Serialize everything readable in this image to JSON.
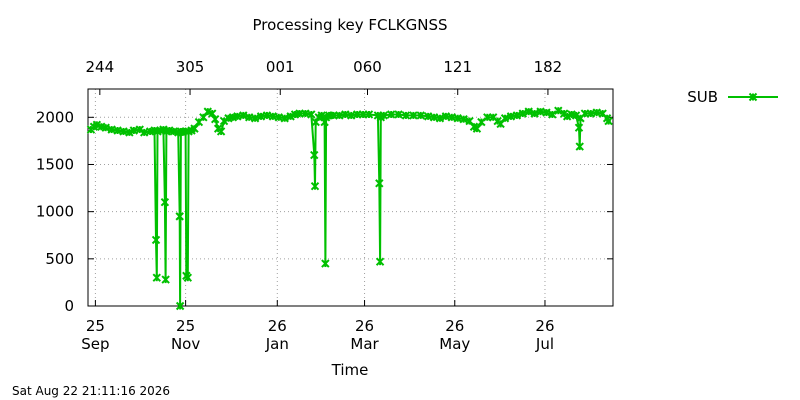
{
  "chart_data": {
    "type": "line",
    "title": "Processing key FCLKGNSS",
    "xlabel": "Time",
    "ylabel": "",
    "footer_timestamp": "Sat Aug 22 21:11:16 2026",
    "ylim": [
      0,
      2300
    ],
    "yticks": [
      "0",
      "500",
      "1000",
      "1500",
      "2000"
    ],
    "x_unit": "day of year (Sep 20 = day 0)",
    "xlim": [
      0,
      355
    ],
    "bottom_ticks": [
      {
        "x": 5,
        "line1": "25",
        "line2": "Sep"
      },
      {
        "x": 66,
        "line1": "25",
        "line2": "Nov"
      },
      {
        "x": 128,
        "line1": "26",
        "line2": "Jan"
      },
      {
        "x": 187,
        "line1": "26",
        "line2": "Mar"
      },
      {
        "x": 248,
        "line1": "26",
        "line2": "May"
      },
      {
        "x": 309,
        "line1": "26",
        "line2": "Jul"
      }
    ],
    "top_ticks": [
      {
        "x": 8,
        "label": "244"
      },
      {
        "x": 69,
        "label": "305"
      },
      {
        "x": 130,
        "label": "001"
      },
      {
        "x": 189,
        "label": "060"
      },
      {
        "x": 250,
        "label": "121"
      },
      {
        "x": 311,
        "label": "182"
      }
    ],
    "grid": true,
    "legend_position": "top-right, outside plot",
    "series": [
      {
        "name": "SUB",
        "color": "#00c000",
        "marker": "x",
        "points": [
          [
            2,
            1870
          ],
          [
            4,
            1900
          ],
          [
            6,
            1920
          ],
          [
            9,
            1900
          ],
          [
            12,
            1890
          ],
          [
            16,
            1870
          ],
          [
            20,
            1860
          ],
          [
            24,
            1850
          ],
          [
            28,
            1840
          ],
          [
            31,
            1860
          ],
          [
            35,
            1870
          ],
          [
            38,
            1840
          ],
          [
            42,
            1850
          ],
          [
            45,
            1860
          ],
          [
            46,
            700
          ],
          [
            46.5,
            300
          ],
          [
            47,
            1850
          ],
          [
            49,
            1860
          ],
          [
            51,
            1870
          ],
          [
            52,
            1100
          ],
          [
            52.5,
            280
          ],
          [
            53,
            1850
          ],
          [
            55,
            1860
          ],
          [
            58,
            1850
          ],
          [
            61,
            1840
          ],
          [
            62,
            950
          ],
          [
            62.3,
            0
          ],
          [
            62.8,
            1850
          ],
          [
            64,
            1840
          ],
          [
            66,
            1850
          ],
          [
            66.5,
            320
          ],
          [
            67.5,
            300
          ],
          [
            68,
            1850
          ],
          [
            70,
            1860
          ],
          [
            72,
            1880
          ],
          [
            75,
            1950
          ],
          [
            78,
            2000
          ],
          [
            81,
            2060
          ],
          [
            84,
            2040
          ],
          [
            86,
            1980
          ],
          [
            88,
            1880
          ],
          [
            90,
            1850
          ],
          [
            92,
            1960
          ],
          [
            95,
            1990
          ],
          [
            98,
            2000
          ],
          [
            101,
            2010
          ],
          [
            105,
            2020
          ],
          [
            109,
            2000
          ],
          [
            113,
            1990
          ],
          [
            117,
            2010
          ],
          [
            121,
            2020
          ],
          [
            125,
            2010
          ],
          [
            129,
            2000
          ],
          [
            133,
            1990
          ],
          [
            137,
            2010
          ],
          [
            140,
            2030
          ],
          [
            143,
            2040
          ],
          [
            147,
            2040
          ],
          [
            151,
            2030
          ],
          [
            153,
            1600
          ],
          [
            153.5,
            1270
          ],
          [
            154,
            1950
          ],
          [
            156,
            2000
          ],
          [
            158,
            2020
          ],
          [
            160,
            1950
          ],
          [
            160.5,
            450
          ],
          [
            161,
            2000
          ],
          [
            163,
            2020
          ],
          [
            166,
            2020
          ],
          [
            170,
            2020
          ],
          [
            174,
            2030
          ],
          [
            178,
            2020
          ],
          [
            182,
            2030
          ],
          [
            186,
            2030
          ],
          [
            190,
            2030
          ],
          [
            196,
            2020
          ],
          [
            197,
            1300
          ],
          [
            197.5,
            470
          ],
          [
            198,
            2000
          ],
          [
            200,
            2020
          ],
          [
            205,
            2030
          ],
          [
            210,
            2030
          ],
          [
            215,
            2020
          ],
          [
            220,
            2020
          ],
          [
            225,
            2020
          ],
          [
            230,
            2010
          ],
          [
            234,
            2000
          ],
          [
            238,
            1990
          ],
          [
            242,
            2010
          ],
          [
            246,
            2000
          ],
          [
            250,
            1990
          ],
          [
            254,
            1980
          ],
          [
            258,
            1960
          ],
          [
            261,
            1900
          ],
          [
            263,
            1880
          ],
          [
            266,
            1950
          ],
          [
            270,
            2000
          ],
          [
            274,
            2000
          ],
          [
            277,
            1960
          ],
          [
            279,
            1930
          ],
          [
            282,
            1990
          ],
          [
            286,
            2010
          ],
          [
            290,
            2020
          ],
          [
            294,
            2040
          ],
          [
            298,
            2060
          ],
          [
            302,
            2040
          ],
          [
            306,
            2060
          ],
          [
            310,
            2050
          ],
          [
            314,
            2030
          ],
          [
            318,
            2070
          ],
          [
            322,
            2040
          ],
          [
            324,
            2010
          ],
          [
            327,
            2030
          ],
          [
            330,
            2020
          ],
          [
            332,
            1890
          ],
          [
            332.5,
            1690
          ],
          [
            333,
            1990
          ],
          [
            336,
            2040
          ],
          [
            340,
            2040
          ],
          [
            344,
            2050
          ],
          [
            348,
            2040
          ],
          [
            351,
            1990
          ],
          [
            352,
            1960
          ]
        ]
      }
    ]
  }
}
